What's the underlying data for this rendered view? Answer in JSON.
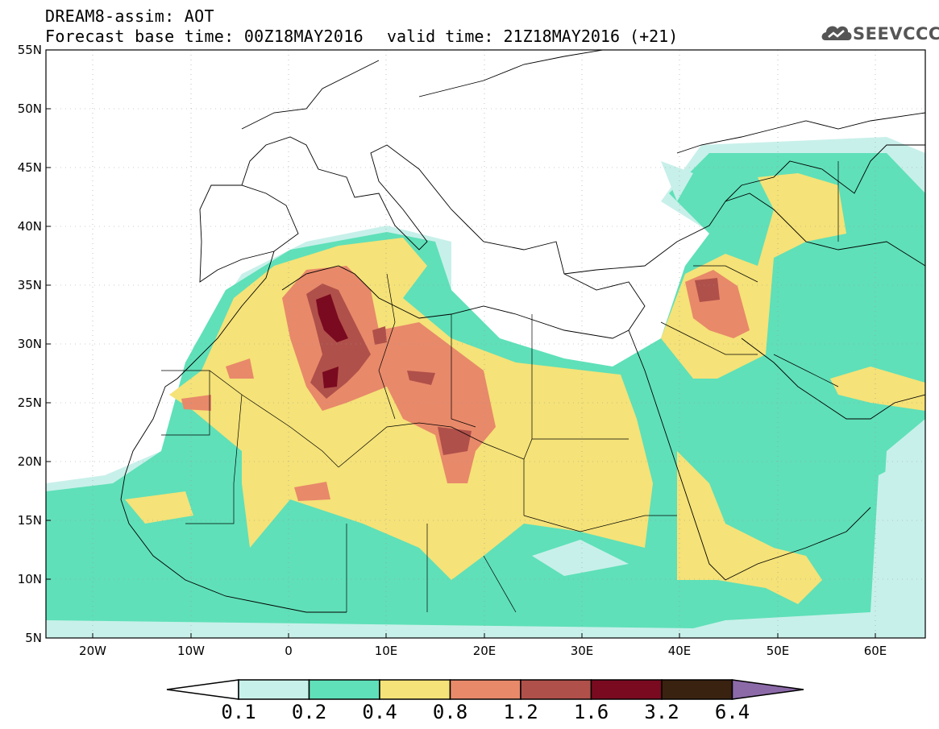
{
  "header": {
    "title_line1": "DREAM8-assim: AOT",
    "title_line2": "Forecast base time: 00Z18MAY2016",
    "valid_time": "valid time: 21Z18MAY2016 (+21)"
  },
  "logo": {
    "text": "SEEVCCC",
    "icon": "cloud-icon"
  },
  "map": {
    "lat_labels": [
      "55N",
      "50N",
      "45N",
      "40N",
      "35N",
      "30N",
      "25N",
      "20N",
      "15N",
      "10N",
      "5N"
    ],
    "lon_labels": [
      "20W",
      "10W",
      "0",
      "10E",
      "20E",
      "30E",
      "40E",
      "50E",
      "60E"
    ],
    "colors": {
      "ocean": "#ffffff",
      "c1": "#c8f0ea",
      "c2": "#5fe0b8",
      "c3": "#f5e278",
      "c4": "#e8896a",
      "c5": "#b0504a",
      "c6": "#7a0a20",
      "border": "#000000"
    }
  },
  "colorbar": {
    "labels": [
      "0.1",
      "0.2",
      "0.4",
      "0.8",
      "1.2",
      "1.6",
      "3.2",
      "6.4"
    ],
    "colors": [
      "#ffffff",
      "#c8f0ea",
      "#5fe0b8",
      "#f5e278",
      "#e8896a",
      "#b0504a",
      "#7a0a20",
      "#3a2210",
      "#8c6aa8"
    ]
  }
}
